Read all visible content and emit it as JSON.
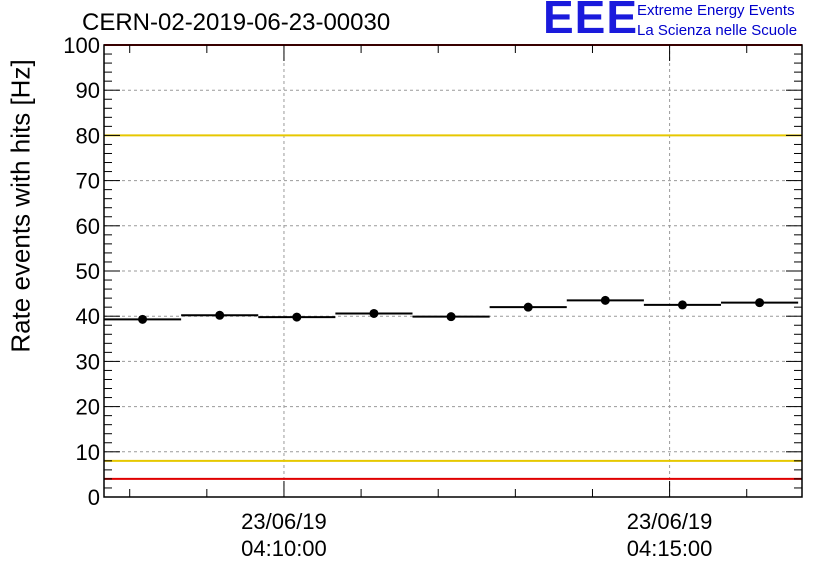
{
  "chart_data": {
    "type": "scatter",
    "title": "CERN-02-2019-06-23-00030",
    "ylabel": "Rate events with hits [Hz]",
    "xlabel": "",
    "ylim": [
      0,
      100
    ],
    "yticks": [
      0,
      10,
      20,
      30,
      40,
      50,
      60,
      70,
      80,
      90,
      100
    ],
    "x_range_minutes": [
      0,
      9.05
    ],
    "xticks": [
      {
        "date": "23/06/19",
        "time": "04:10:00"
      },
      {
        "date": "23/06/19",
        "time": "04:15:00"
      }
    ],
    "grid": true,
    "thresholds": [
      {
        "value": 100,
        "color": "#e00000"
      },
      {
        "value": 80,
        "color": "#e6c800"
      },
      {
        "value": 8,
        "color": "#e6c800"
      },
      {
        "value": 4,
        "color": "#e00000"
      }
    ],
    "series": [
      {
        "color": "#000000",
        "bins": [
          {
            "x0": "04:07:40",
            "x1": "04:08:40",
            "y": 39.3
          },
          {
            "x0": "04:08:40",
            "x1": "04:09:40",
            "y": 40.2
          },
          {
            "x0": "04:09:40",
            "x1": "04:10:40",
            "y": 39.8
          },
          {
            "x0": "04:10:40",
            "x1": "04:11:40",
            "y": 40.6
          },
          {
            "x0": "04:11:40",
            "x1": "04:12:40",
            "y": 39.9
          },
          {
            "x0": "04:12:40",
            "x1": "04:13:40",
            "y": 42.0
          },
          {
            "x0": "04:13:40",
            "x1": "04:14:40",
            "y": 43.5
          },
          {
            "x0": "04:14:40",
            "x1": "04:15:40",
            "y": 42.5
          },
          {
            "x0": "04:15:40",
            "x1": "04:16:40",
            "y": 43.0
          }
        ]
      }
    ]
  },
  "logo": {
    "mark": "EEE",
    "line1": "Extreme Energy Events",
    "line2": "La Scienza nelle Scuole"
  }
}
